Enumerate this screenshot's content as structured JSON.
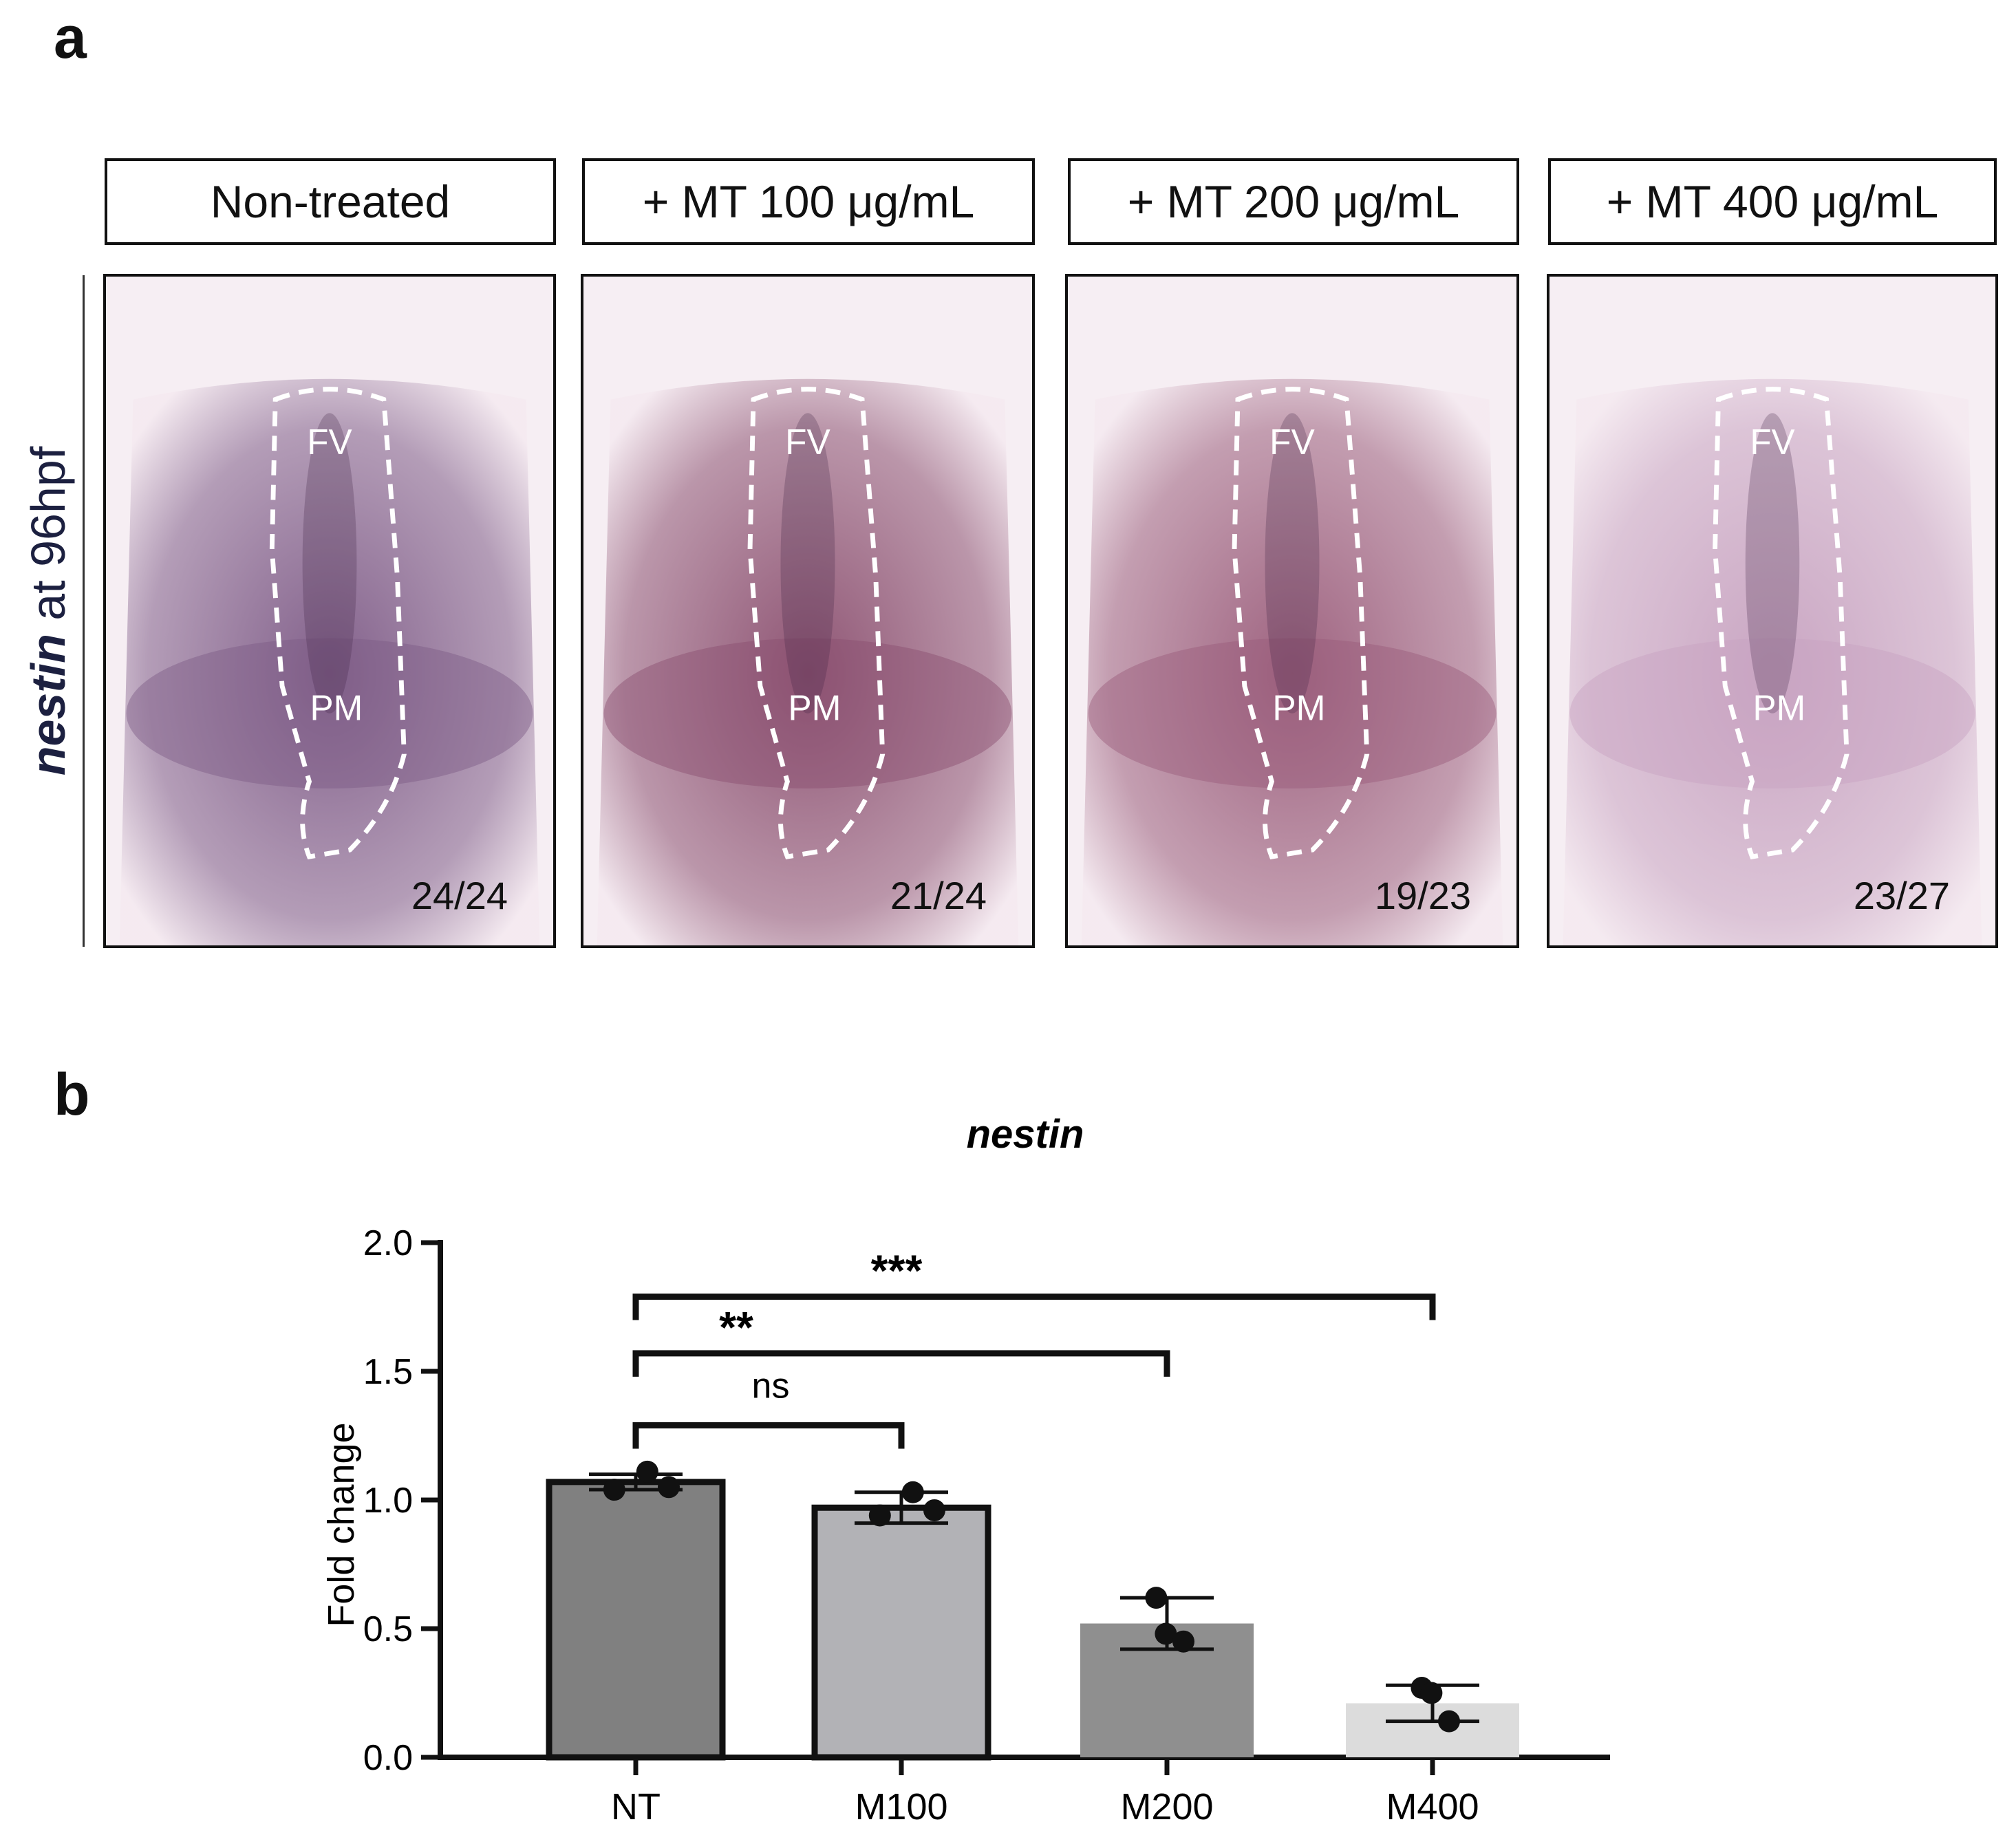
{
  "panel_a": {
    "letter": "a",
    "row_label_gene": "nestin",
    "row_label_rest": " at 96hpf",
    "region_labels": {
      "top": "FV",
      "bottom": "PM"
    },
    "conditions": [
      {
        "label": "Non-treated",
        "count": "24/24",
        "tint": "#7d5a86"
      },
      {
        "label": "+ MT 100 μg/mL",
        "count": "21/24",
        "tint": "#8a4e6e"
      },
      {
        "label": "+ MT 200 μg/mL",
        "count": "19/23",
        "tint": "#9a5c7a"
      },
      {
        "label": "+ MT 400 μg/mL",
        "count": "23/27",
        "tint": "#c7a2c0"
      }
    ]
  },
  "panel_b": {
    "letter": "b"
  },
  "chart_data": {
    "type": "bar",
    "title": "nestin",
    "xlabel": "",
    "ylabel": "Fold change",
    "ylim": [
      0,
      2.0
    ],
    "yticks": [
      "0.0",
      "0.5",
      "1.0",
      "1.5",
      "2.0"
    ],
    "categories": [
      "NT",
      "M100",
      "M200",
      "M400"
    ],
    "values": [
      1.07,
      0.97,
      0.52,
      0.21
    ],
    "errors": [
      0.03,
      0.06,
      0.1,
      0.07
    ],
    "bar_colors": [
      "#808080",
      "#b2b2b6",
      "#8f8f8f",
      "#dcdcdc"
    ],
    "bar_outline": [
      true,
      true,
      false,
      false
    ],
    "points": [
      [
        1.04,
        1.11,
        1.05
      ],
      [
        0.94,
        1.03,
        0.96
      ],
      [
        0.62,
        0.48,
        0.45
      ],
      [
        0.27,
        0.25,
        0.14
      ]
    ],
    "significance": [
      {
        "from": "NT",
        "to": "M100",
        "label": "ns",
        "y": 1.29
      },
      {
        "from": "NT",
        "to": "M200",
        "label": "**",
        "y": 1.57
      },
      {
        "from": "NT",
        "to": "M400",
        "label": "***",
        "y": 1.79
      }
    ],
    "grid": false
  }
}
